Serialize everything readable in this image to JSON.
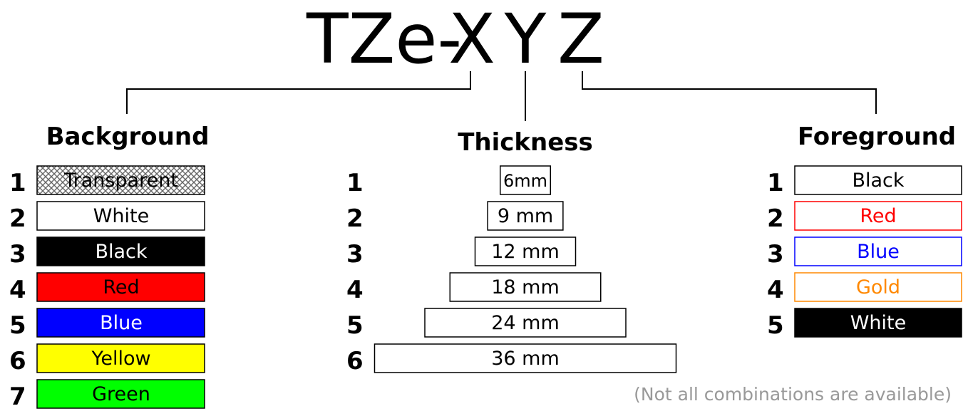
{
  "title": {
    "prefix": "TZe-",
    "x": "X",
    "y": "Y",
    "z": "Z"
  },
  "background": {
    "heading": "Background",
    "items": [
      {
        "num": "1",
        "label": "Transparent",
        "fill": "pattern",
        "text_color": "#000000"
      },
      {
        "num": "2",
        "label": "White",
        "fill": "#ffffff",
        "text_color": "#000000"
      },
      {
        "num": "3",
        "label": "Black",
        "fill": "#000000",
        "text_color": "#ffffff"
      },
      {
        "num": "4",
        "label": "Red",
        "fill": "#ff0000",
        "text_color": "#000000"
      },
      {
        "num": "5",
        "label": "Blue",
        "fill": "#0000ff",
        "text_color": "#ffffff"
      },
      {
        "num": "6",
        "label": "Yellow",
        "fill": "#ffff00",
        "text_color": "#000000"
      },
      {
        "num": "7",
        "label": "Green",
        "fill": "#00ff00",
        "text_color": "#000000"
      }
    ]
  },
  "thickness": {
    "heading": "Thickness",
    "items": [
      {
        "num": "1",
        "label": "6mm",
        "mm": 6
      },
      {
        "num": "2",
        "label": "9 mm",
        "mm": 9
      },
      {
        "num": "3",
        "label": "12 mm",
        "mm": 12
      },
      {
        "num": "4",
        "label": "18 mm",
        "mm": 18
      },
      {
        "num": "5",
        "label": "24 mm",
        "mm": 24
      },
      {
        "num": "6",
        "label": "36 mm",
        "mm": 36
      }
    ]
  },
  "foreground": {
    "heading": "Foreground",
    "items": [
      {
        "num": "1",
        "label": "Black",
        "color": "#000000",
        "fill": "#ffffff",
        "border": "#000000"
      },
      {
        "num": "2",
        "label": "Red",
        "color": "#ff0000",
        "fill": "#ffffff",
        "border": "#ff0000"
      },
      {
        "num": "3",
        "label": "Blue",
        "color": "#0000ff",
        "fill": "#ffffff",
        "border": "#0000ff"
      },
      {
        "num": "4",
        "label": "Gold",
        "color": "#ff8800",
        "fill": "#ffffff",
        "border": "#ff8800"
      },
      {
        "num": "5",
        "label": "White",
        "color": "#ffffff",
        "fill": "#000000",
        "border": "#000000"
      }
    ]
  },
  "note": "(Not all combinations are available)"
}
